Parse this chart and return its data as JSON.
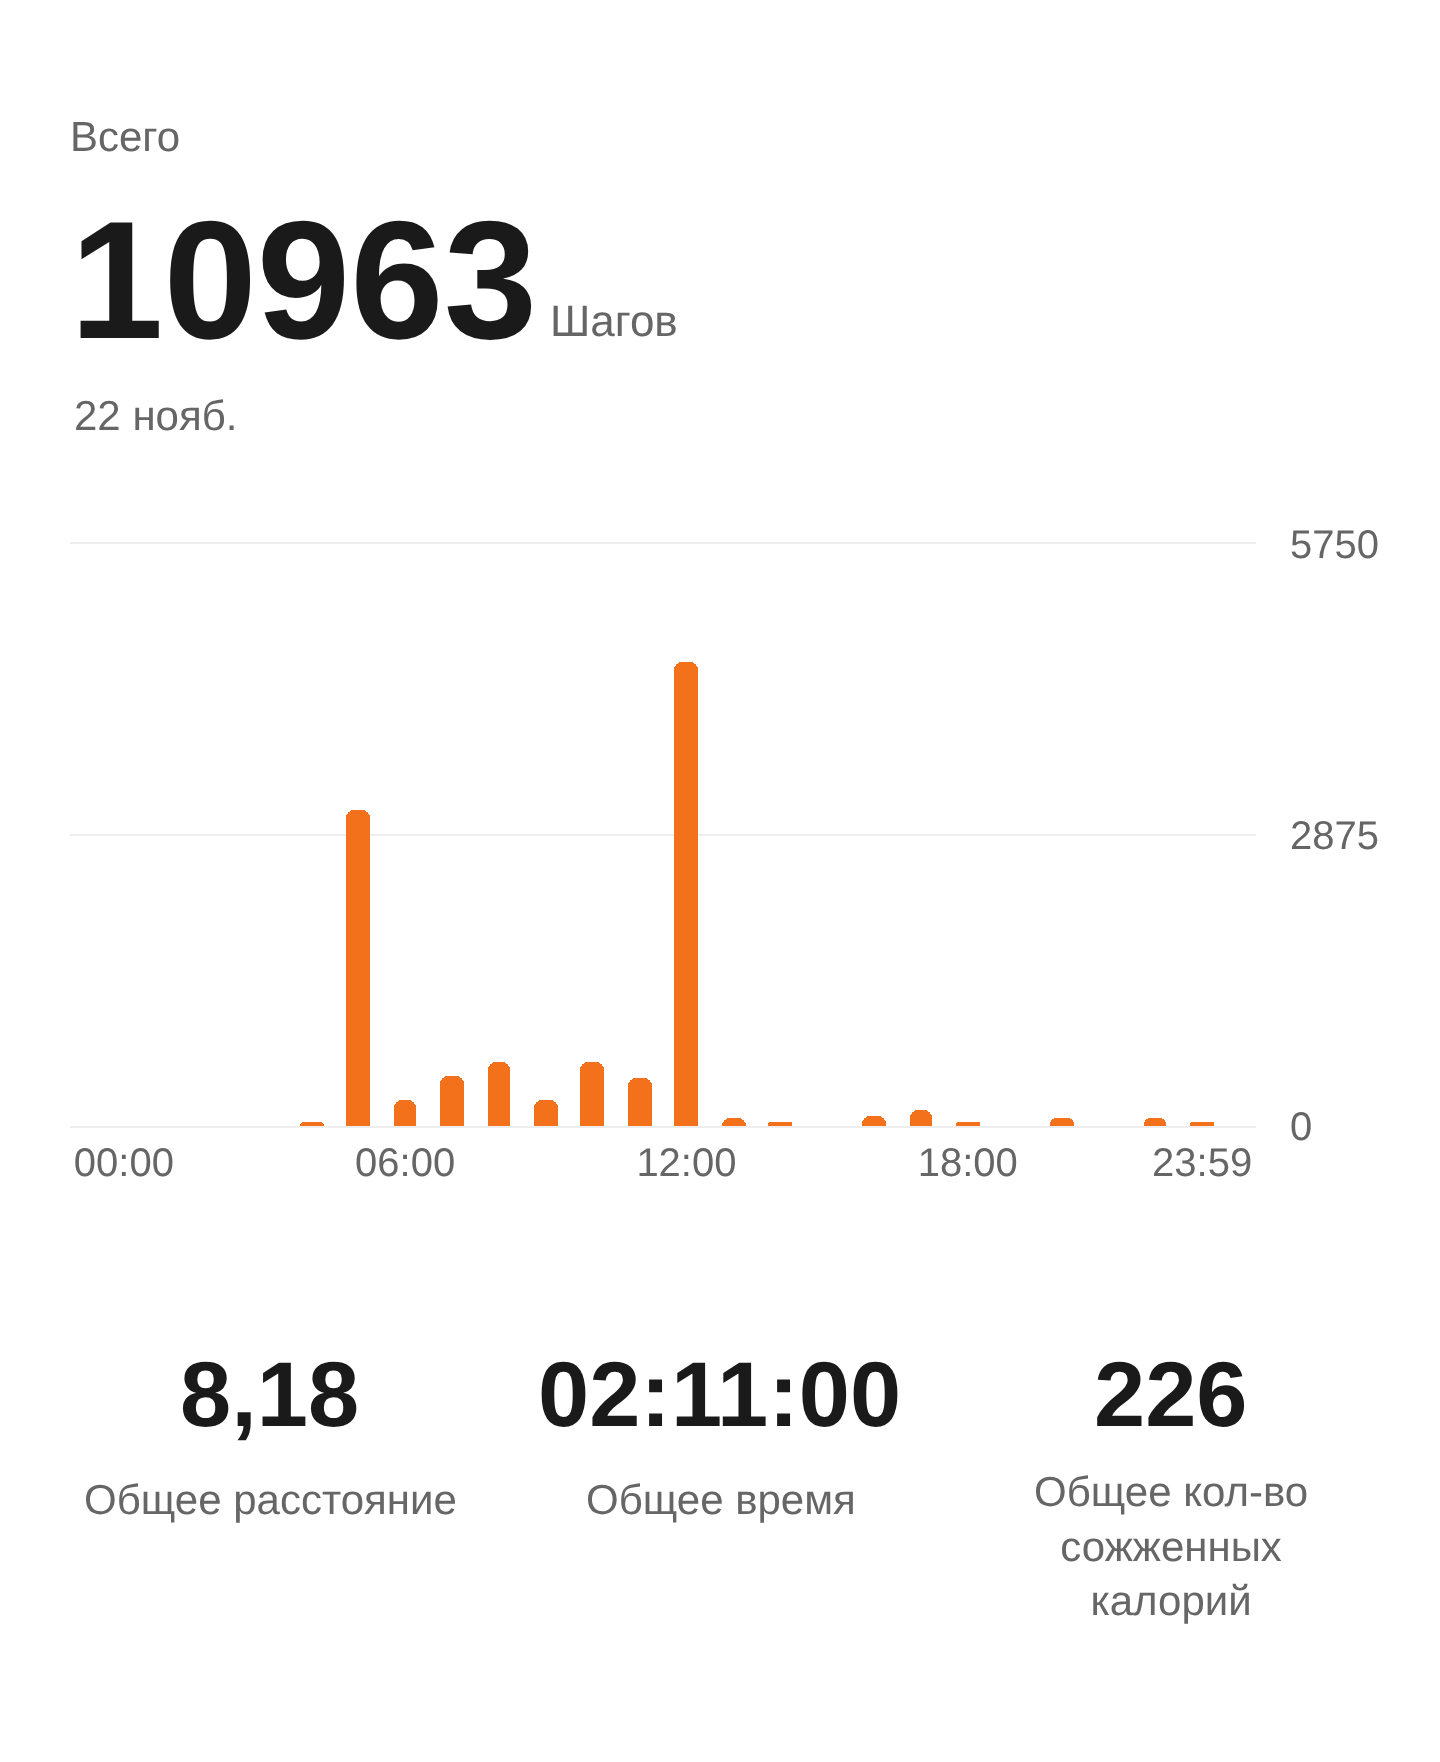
{
  "chart_data": {
    "type": "bar",
    "title": "Всего",
    "subtitle": "22 нояб.",
    "categories": [
      "00:00",
      null,
      null,
      null,
      null,
      null,
      "06:00",
      null,
      null,
      null,
      null,
      null,
      "12:00",
      null,
      null,
      null,
      null,
      null,
      "18:00",
      null,
      null,
      null,
      null,
      "23:59"
    ],
    "values": [
      0,
      0,
      0,
      0,
      40,
      3130,
      260,
      500,
      630,
      260,
      630,
      480,
      4590,
      80,
      20,
      0,
      90,
      150,
      30,
      0,
      70,
      0,
      70,
      30
    ],
    "color": "#f4711c",
    "ylim": [
      0,
      5750
    ],
    "yticks": [
      0,
      2875,
      5750
    ],
    "grid": "y",
    "annotations": [
      "10963",
      "Шагов",
      "8,18",
      "Общее расстояние",
      "02:11:00",
      "Общее время",
      "226",
      "Общее кол-во сожженных калорий"
    ]
  }
}
